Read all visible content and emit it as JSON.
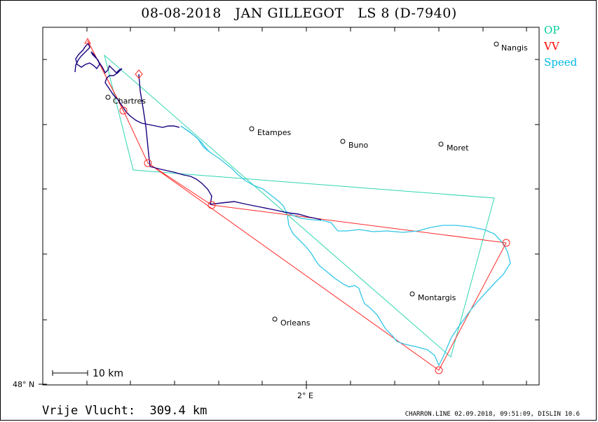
{
  "header": {
    "date": "08-08-2018",
    "pilot": "JAN GILLEGOT",
    "glider": "LS 8 (D-7940)"
  },
  "legend": {
    "items": [
      {
        "label": "OP",
        "color": "#00cc99"
      },
      {
        "label": "VV",
        "color": "#ff0000"
      },
      {
        "label": "Speed",
        "color": "#00b8e6"
      }
    ]
  },
  "towns": [
    "Nangis",
    "Chartres",
    "Etampes",
    "Buno",
    "Moret",
    "Montargis",
    "Orleans"
  ],
  "axes": {
    "lat_label": "48° N",
    "lon_label": "2° E"
  },
  "scale_bar": {
    "label": "10  km"
  },
  "distance": {
    "text": "Vrije Vlucht:  309.4 km"
  },
  "footer": {
    "text": "CHARRON.LINE 02.09.2018, 09:51:09, DISLIN 10.6"
  },
  "colors": {
    "track": "#1a0080",
    "speed_track": "#33c6e6",
    "op_polygon": "#2ed6b0",
    "vv_polygon": "#ff2a2a"
  }
}
